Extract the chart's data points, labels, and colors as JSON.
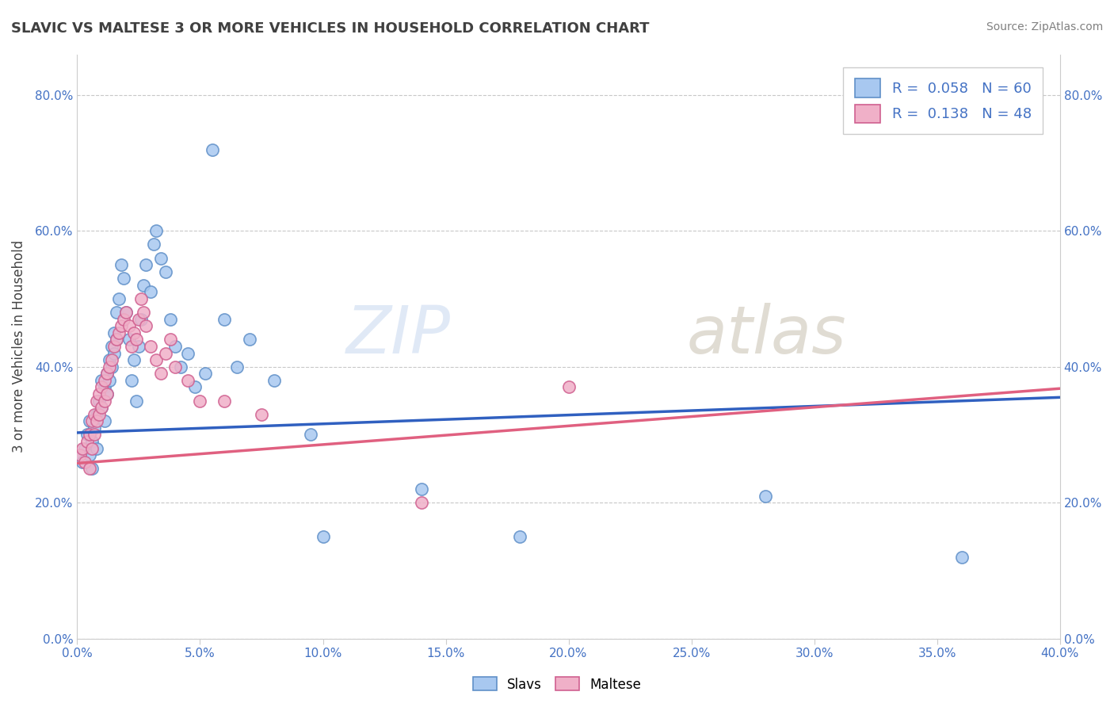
{
  "title": "SLAVIC VS MALTESE 3 OR MORE VEHICLES IN HOUSEHOLD CORRELATION CHART",
  "source": "Source: ZipAtlas.com",
  "ylabel_label": "3 or more Vehicles in Household",
  "xlim": [
    0.0,
    0.4
  ],
  "ylim": [
    0.0,
    0.86
  ],
  "watermark_zip": "ZIP",
  "watermark_atlas": "atlas",
  "legend_slavs_r": "R = ",
  "legend_slavs_rv": "0.058",
  "legend_slavs_n": "N = ",
  "legend_slavs_nv": "60",
  "legend_maltese_r": "R = ",
  "legend_maltese_rv": "0.138",
  "legend_maltese_n": "N = ",
  "legend_maltese_nv": "48",
  "slavs_color": "#a8c8f0",
  "slavs_edge": "#6090c8",
  "maltese_color": "#f0b0c8",
  "maltese_edge": "#d06090",
  "slavs_line_color": "#3060c0",
  "maltese_line_color": "#e06080",
  "slavs_x": [
    0.001,
    0.002,
    0.003,
    0.004,
    0.005,
    0.005,
    0.006,
    0.006,
    0.007,
    0.008,
    0.008,
    0.009,
    0.01,
    0.01,
    0.011,
    0.011,
    0.012,
    0.012,
    0.013,
    0.013,
    0.014,
    0.014,
    0.015,
    0.015,
    0.016,
    0.016,
    0.017,
    0.018,
    0.019,
    0.02,
    0.021,
    0.022,
    0.023,
    0.024,
    0.025,
    0.026,
    0.027,
    0.028,
    0.03,
    0.031,
    0.032,
    0.034,
    0.036,
    0.038,
    0.04,
    0.042,
    0.045,
    0.048,
    0.052,
    0.055,
    0.06,
    0.065,
    0.07,
    0.08,
    0.095,
    0.1,
    0.14,
    0.18,
    0.28,
    0.36
  ],
  "slavs_y": [
    0.27,
    0.26,
    0.28,
    0.3,
    0.32,
    0.27,
    0.29,
    0.25,
    0.31,
    0.33,
    0.28,
    0.35,
    0.34,
    0.38,
    0.37,
    0.32,
    0.39,
    0.36,
    0.41,
    0.38,
    0.4,
    0.43,
    0.42,
    0.45,
    0.48,
    0.44,
    0.5,
    0.55,
    0.53,
    0.48,
    0.44,
    0.38,
    0.41,
    0.35,
    0.43,
    0.47,
    0.52,
    0.55,
    0.51,
    0.58,
    0.6,
    0.56,
    0.54,
    0.47,
    0.43,
    0.4,
    0.42,
    0.37,
    0.39,
    0.72,
    0.47,
    0.4,
    0.44,
    0.38,
    0.3,
    0.15,
    0.22,
    0.15,
    0.21,
    0.12
  ],
  "maltese_x": [
    0.001,
    0.002,
    0.003,
    0.004,
    0.005,
    0.005,
    0.006,
    0.006,
    0.007,
    0.007,
    0.008,
    0.008,
    0.009,
    0.009,
    0.01,
    0.01,
    0.011,
    0.011,
    0.012,
    0.012,
    0.013,
    0.014,
    0.015,
    0.016,
    0.017,
    0.018,
    0.019,
    0.02,
    0.021,
    0.022,
    0.023,
    0.024,
    0.025,
    0.026,
    0.027,
    0.028,
    0.03,
    0.032,
    0.034,
    0.036,
    0.038,
    0.04,
    0.045,
    0.05,
    0.06,
    0.075,
    0.14,
    0.2
  ],
  "maltese_y": [
    0.27,
    0.28,
    0.26,
    0.29,
    0.3,
    0.25,
    0.32,
    0.28,
    0.33,
    0.3,
    0.35,
    0.32,
    0.36,
    0.33,
    0.37,
    0.34,
    0.38,
    0.35,
    0.39,
    0.36,
    0.4,
    0.41,
    0.43,
    0.44,
    0.45,
    0.46,
    0.47,
    0.48,
    0.46,
    0.43,
    0.45,
    0.44,
    0.47,
    0.5,
    0.48,
    0.46,
    0.43,
    0.41,
    0.39,
    0.42,
    0.44,
    0.4,
    0.38,
    0.35,
    0.35,
    0.33,
    0.2,
    0.37
  ],
  "slavs_line_x": [
    0.0,
    0.4
  ],
  "slavs_line_y": [
    0.303,
    0.355
  ],
  "maltese_line_x": [
    0.0,
    0.4
  ],
  "maltese_line_y": [
    0.258,
    0.368
  ]
}
